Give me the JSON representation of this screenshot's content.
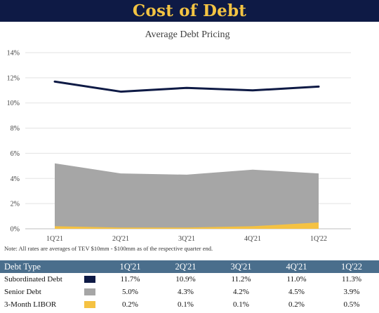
{
  "banner": {
    "title": "Cost of Debt"
  },
  "note": "Note: All rates are averages of  TEV $10mm - $100mm as of the respective quarter end.",
  "table": {
    "header_label": "Debt Type",
    "columns": [
      "1Q'21",
      "2Q'21",
      "3Q'21",
      "4Q'21",
      "1Q'22"
    ],
    "rows": [
      {
        "label": "Subordinated Debt",
        "color": "#0e1a45",
        "values": [
          "11.7%",
          "10.9%",
          "11.2%",
          "11.0%",
          "11.3%"
        ]
      },
      {
        "label": "Senior Debt",
        "color": "#a6a6a6",
        "values": [
          "5.0%",
          "4.3%",
          "4.2%",
          "4.5%",
          "3.9%"
        ]
      },
      {
        "label": "3-Month LIBOR",
        "color": "#f5c242",
        "values": [
          "0.2%",
          "0.1%",
          "0.1%",
          "0.2%",
          "0.5%"
        ]
      }
    ]
  },
  "chart_data": {
    "type": "area",
    "title": "Average Debt Pricing",
    "categories": [
      "1Q'21",
      "2Q'21",
      "3Q'21",
      "4Q'21",
      "1Q'22"
    ],
    "ylim": [
      0,
      14
    ],
    "yticks": [
      "0%",
      "2%",
      "4%",
      "6%",
      "8%",
      "10%",
      "12%",
      "14%"
    ],
    "grid": true,
    "series": [
      {
        "name": "Subordinated Debt",
        "type": "line",
        "color": "#0e1a45",
        "values": [
          11.7,
          10.9,
          11.2,
          11.0,
          11.3
        ]
      },
      {
        "name": "Senior Debt",
        "type": "area",
        "color": "#a6a6a6",
        "values": [
          5.2,
          4.4,
          4.3,
          4.7,
          4.4
        ]
      },
      {
        "name": "3-Month LIBOR",
        "type": "area",
        "color": "#f5c242",
        "values": [
          0.2,
          0.1,
          0.1,
          0.2,
          0.5
        ]
      }
    ]
  }
}
